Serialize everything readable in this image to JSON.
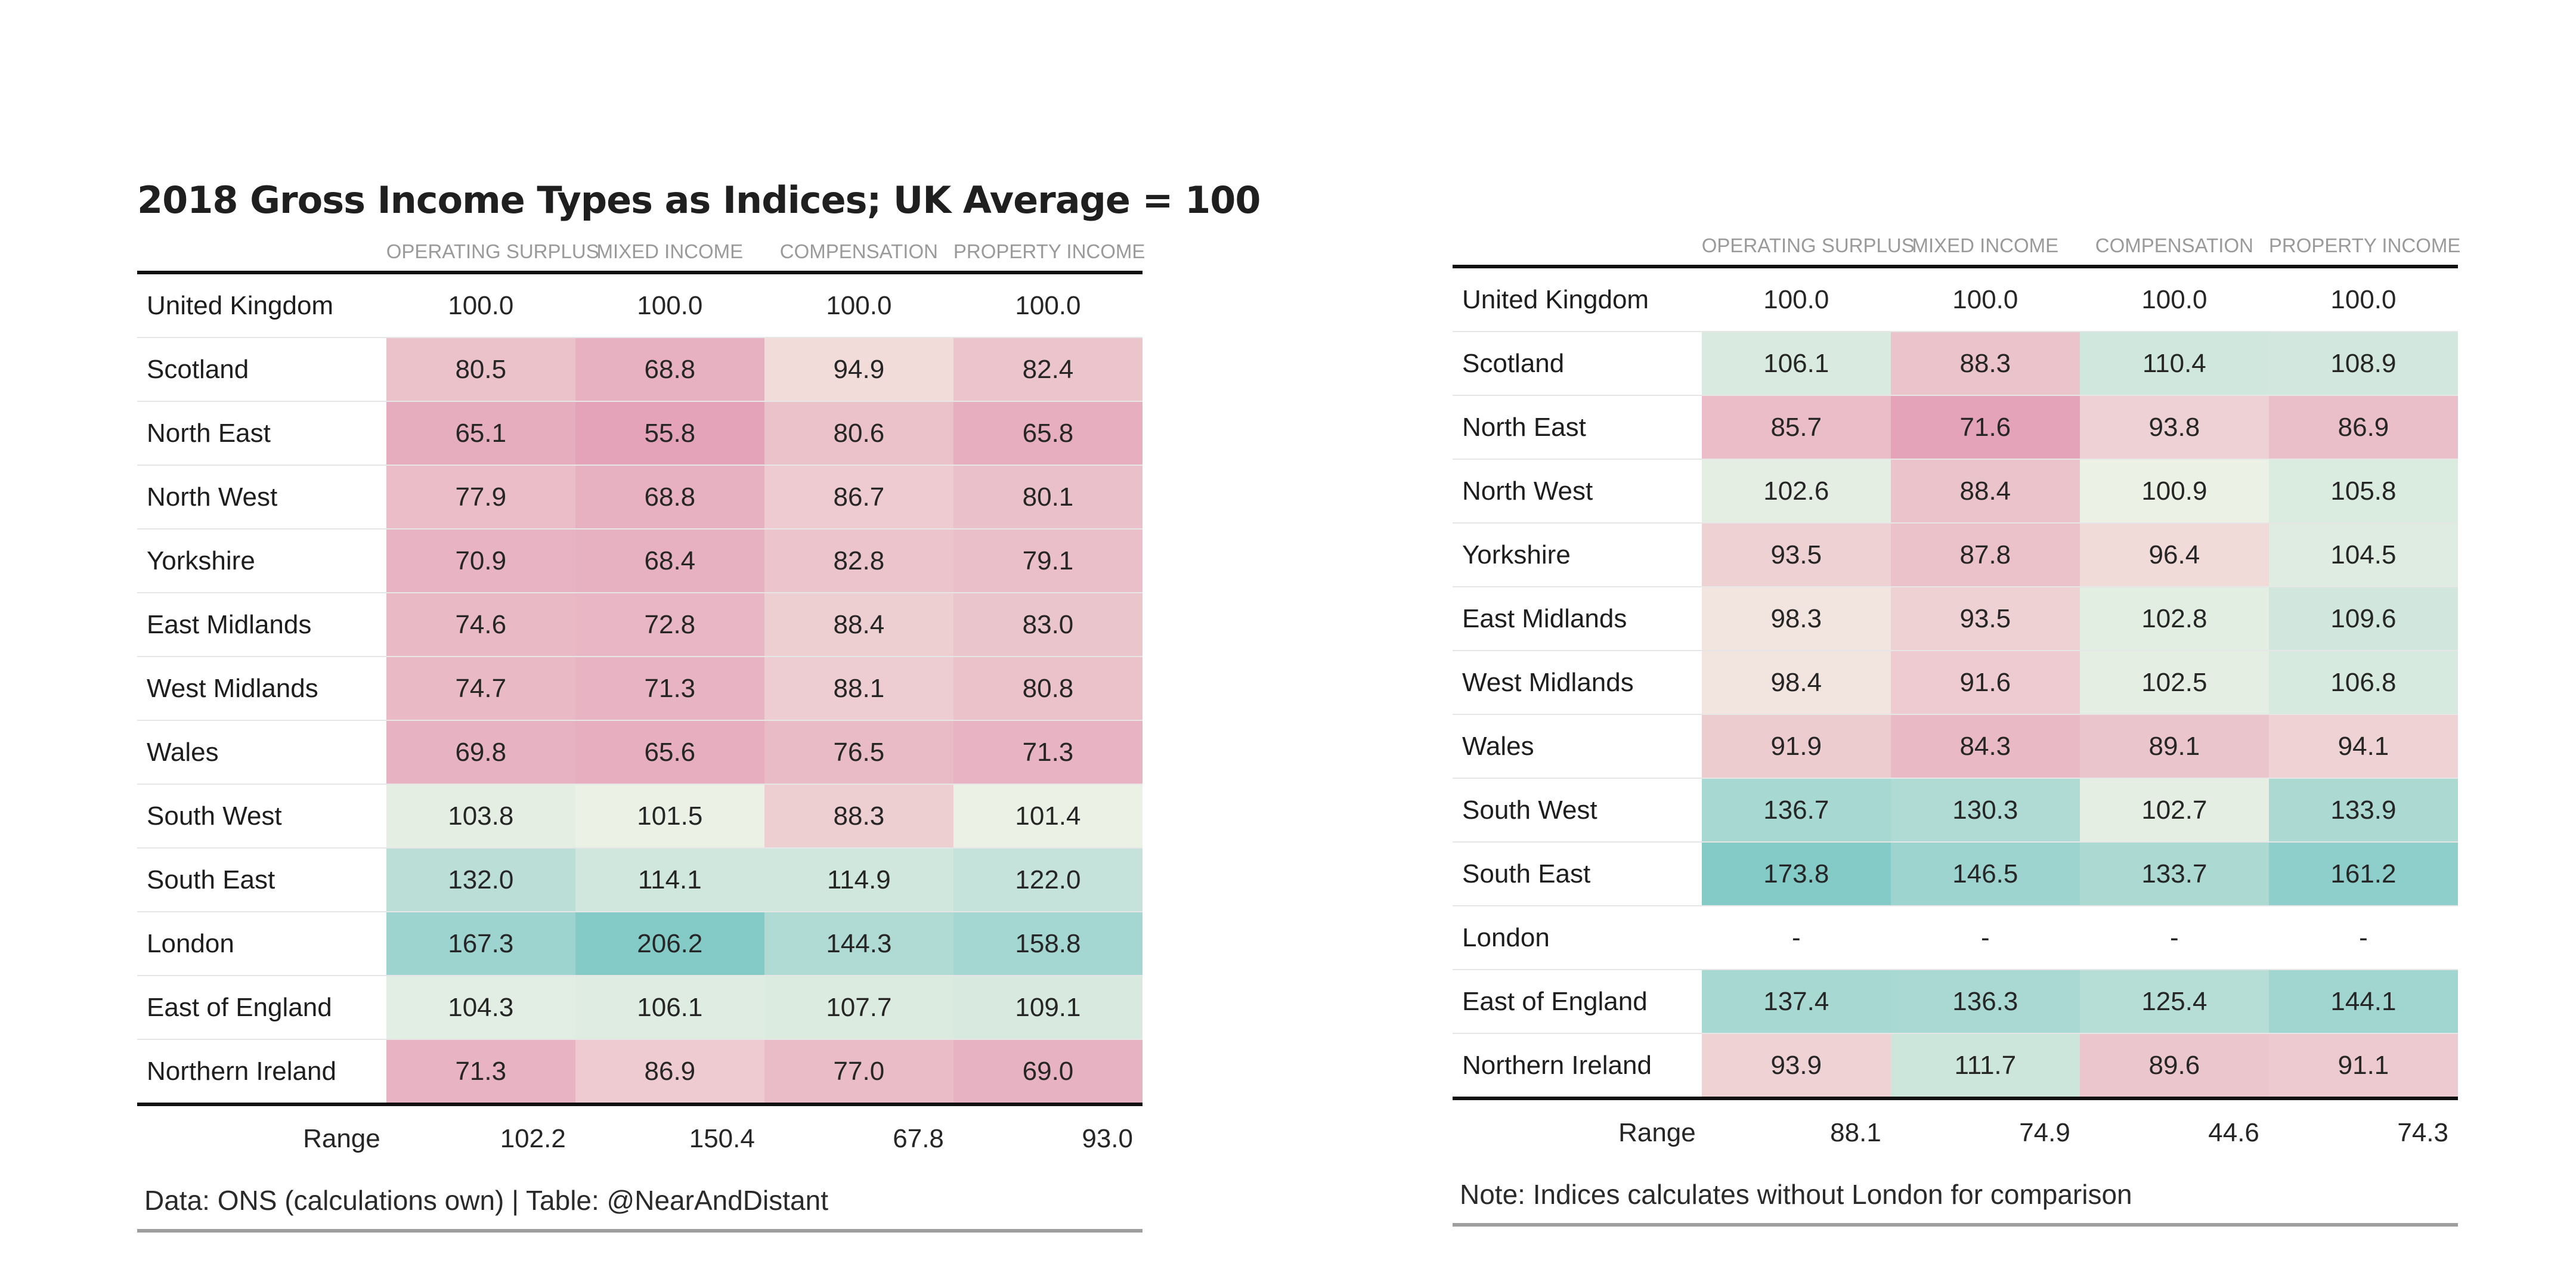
{
  "colors": {
    "low": "#e4a3b9",
    "mid": "#f6f5e8",
    "high": "#84cbc8"
  },
  "chart_data": [
    {
      "type": "table",
      "title": "2018 Gross Income Types as Indices; UK Average = 100",
      "columns": [
        "OPERATING SURPLUS",
        "MIXED INCOME",
        "COMPENSATION",
        "PROPERTY INCOME"
      ],
      "rows": [
        {
          "region": "United Kingdom",
          "values": [
            "100.0",
            "100.0",
            "100.0",
            "100.0"
          ],
          "shade": false
        },
        {
          "region": "Scotland",
          "values": [
            "80.5",
            "68.8",
            "94.9",
            "82.4"
          ],
          "shade": true
        },
        {
          "region": "North East",
          "values": [
            "65.1",
            "55.8",
            "80.6",
            "65.8"
          ],
          "shade": true
        },
        {
          "region": "North West",
          "values": [
            "77.9",
            "68.8",
            "86.7",
            "80.1"
          ],
          "shade": true
        },
        {
          "region": "Yorkshire",
          "values": [
            "70.9",
            "68.4",
            "82.8",
            "79.1"
          ],
          "shade": true
        },
        {
          "region": "East Midlands",
          "values": [
            "74.6",
            "72.8",
            "88.4",
            "83.0"
          ],
          "shade": true
        },
        {
          "region": "West Midlands",
          "values": [
            "74.7",
            "71.3",
            "88.1",
            "80.8"
          ],
          "shade": true
        },
        {
          "region": "Wales",
          "values": [
            "69.8",
            "65.6",
            "76.5",
            "71.3"
          ],
          "shade": true
        },
        {
          "region": "South West",
          "values": [
            "103.8",
            "101.5",
            "88.3",
            "101.4"
          ],
          "shade": true
        },
        {
          "region": "South East",
          "values": [
            "132.0",
            "114.1",
            "114.9",
            "122.0"
          ],
          "shade": true
        },
        {
          "region": "London",
          "values": [
            "167.3",
            "206.2",
            "144.3",
            "158.8"
          ],
          "shade": true
        },
        {
          "region": "East of England",
          "values": [
            "104.3",
            "106.1",
            "107.7",
            "109.1"
          ],
          "shade": true
        },
        {
          "region": "Northern Ireland",
          "values": [
            "71.3",
            "86.9",
            "77.0",
            "69.0"
          ],
          "shade": true
        }
      ],
      "range_label": "Range",
      "range": [
        "102.2",
        "150.4",
        "67.8",
        "93.0"
      ],
      "note": "Data: ONS (calculations own) | Table: @NearAndDistant"
    },
    {
      "type": "table",
      "title": "",
      "columns": [
        "OPERATING SURPLUS",
        "MIXED INCOME",
        "COMPENSATION",
        "PROPERTY INCOME"
      ],
      "rows": [
        {
          "region": "United Kingdom",
          "values": [
            "100.0",
            "100.0",
            "100.0",
            "100.0"
          ],
          "shade": false
        },
        {
          "region": "Scotland",
          "values": [
            "106.1",
            "88.3",
            "110.4",
            "108.9"
          ],
          "shade": true
        },
        {
          "region": "North East",
          "values": [
            "85.7",
            "71.6",
            "93.8",
            "86.9"
          ],
          "shade": true
        },
        {
          "region": "North West",
          "values": [
            "102.6",
            "88.4",
            "100.9",
            "105.8"
          ],
          "shade": true
        },
        {
          "region": "Yorkshire",
          "values": [
            "93.5",
            "87.8",
            "96.4",
            "104.5"
          ],
          "shade": true
        },
        {
          "region": "East Midlands",
          "values": [
            "98.3",
            "93.5",
            "102.8",
            "109.6"
          ],
          "shade": true
        },
        {
          "region": "West Midlands",
          "values": [
            "98.4",
            "91.6",
            "102.5",
            "106.8"
          ],
          "shade": true
        },
        {
          "region": "Wales",
          "values": [
            "91.9",
            "84.3",
            "89.1",
            "94.1"
          ],
          "shade": true
        },
        {
          "region": "South West",
          "values": [
            "136.7",
            "130.3",
            "102.7",
            "133.9"
          ],
          "shade": true
        },
        {
          "region": "South East",
          "values": [
            "173.8",
            "146.5",
            "133.7",
            "161.2"
          ],
          "shade": true
        },
        {
          "region": "London",
          "values": [
            "-",
            "-",
            "-",
            "-"
          ],
          "shade": false
        },
        {
          "region": "East of England",
          "values": [
            "137.4",
            "136.3",
            "125.4",
            "144.1"
          ],
          "shade": true
        },
        {
          "region": "Northern Ireland",
          "values": [
            "93.9",
            "111.7",
            "89.6",
            "91.1"
          ],
          "shade": true
        }
      ],
      "range_label": "Range",
      "range": [
        "88.1",
        "74.9",
        "44.6",
        "74.3"
      ],
      "note": "Note: Indices calculates without London for comparison"
    }
  ]
}
